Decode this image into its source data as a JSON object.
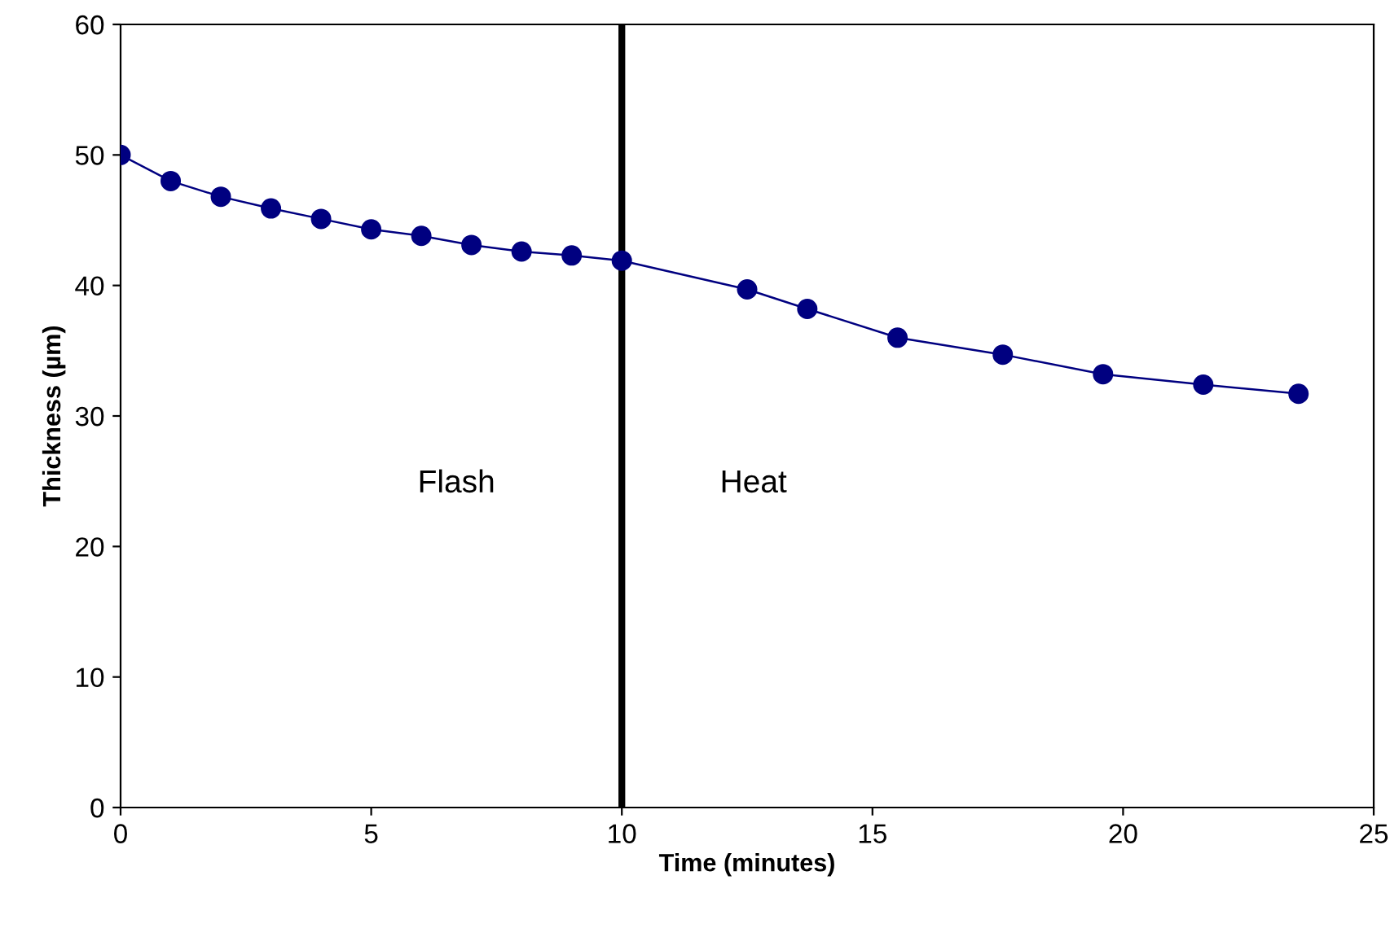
{
  "chart_data": {
    "type": "line",
    "xlabel": "Time (minutes)",
    "ylabel": "Thickness (µm)",
    "x": [
      0,
      1,
      2,
      3,
      4,
      5,
      6,
      7,
      8,
      9,
      10,
      12.5,
      13.7,
      15.5,
      17.6,
      19.6,
      21.6,
      23.5
    ],
    "series": [
      {
        "color": "#000080",
        "values": [
          50.0,
          48.0,
          46.8,
          45.9,
          45.1,
          44.3,
          43.8,
          43.1,
          42.6,
          42.3,
          41.9,
          39.7,
          38.2,
          36.0,
          34.7,
          33.2,
          32.4,
          31.7
        ]
      }
    ],
    "marker": "circle",
    "line_style": "solid",
    "grid": false,
    "legend": false,
    "xlim": [
      0,
      25
    ],
    "xticks": [
      0,
      5,
      10,
      15,
      20,
      25
    ],
    "ylim": [
      0,
      60
    ],
    "yticks": [
      0,
      10,
      20,
      30,
      40,
      50,
      60
    ],
    "ref_lines": [
      {
        "axis": "x",
        "value": 10,
        "color": "#000000"
      }
    ],
    "annotations": [
      "Flash",
      "Heat"
    ]
  }
}
